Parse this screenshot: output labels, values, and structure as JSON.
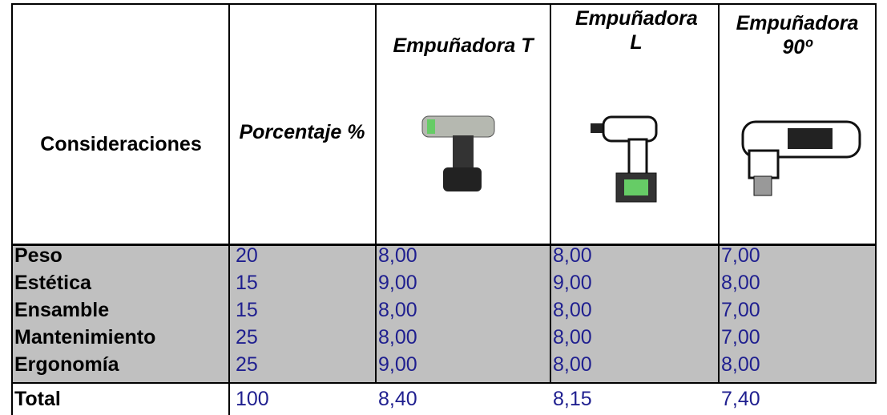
{
  "table": {
    "header": [
      "Consideraciones",
      "Porcentaje %",
      "Empuñadora T",
      "Empuñadora L",
      "Empuñadora 90º"
    ],
    "rows": [
      [
        "Peso",
        20,
        "8,00",
        "8,00",
        "7,00"
      ],
      [
        "Estética",
        15,
        "9,00",
        "9,00",
        "8,00"
      ],
      [
        "Ensamble",
        15,
        "8,00",
        "8,00",
        "7,00"
      ],
      [
        "Mantenimiento",
        25,
        "8,00",
        "8,00",
        "7,00"
      ],
      [
        "Ergonomía",
        25,
        "9,00",
        "8,00",
        "8,00"
      ]
    ],
    "total": [
      "Total",
      100,
      "8,40",
      "8,15",
      "7,40"
    ]
  }
}
